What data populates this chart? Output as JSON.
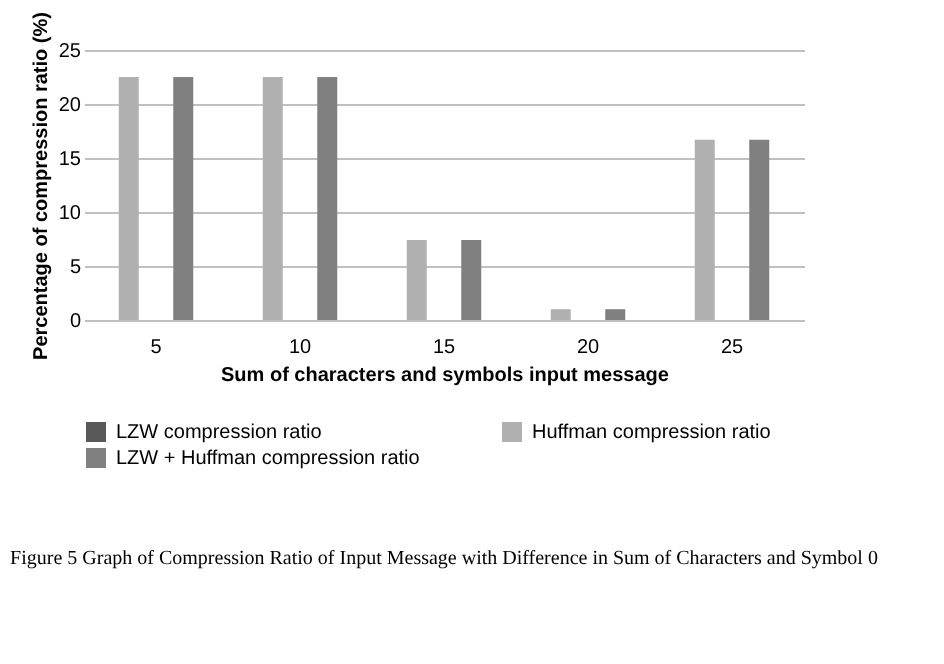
{
  "chart_data": {
    "type": "bar",
    "xlabel": "Sum of characters and symbols input message",
    "ylabel": "Percentage of compression ratio (%)",
    "categories": [
      "5",
      "10",
      "15",
      "20",
      "25"
    ],
    "series": [
      {
        "name": "LZW compression ratio",
        "color": "#595959",
        "values": [
          null,
          null,
          null,
          null,
          null
        ]
      },
      {
        "name": "Huffman compression ratio",
        "color": "#b0b0b0",
        "values": [
          22.5,
          22.5,
          7.4,
          1.0,
          16.7
        ]
      },
      {
        "name": "LZW + Huffman compression ratio",
        "color": "#808080",
        "values": [
          22.5,
          22.5,
          7.4,
          1.0,
          16.7
        ]
      }
    ],
    "ylim": [
      0,
      25
    ],
    "yticks": [
      0,
      5,
      10,
      15,
      20,
      25
    ],
    "grid": "y",
    "legend": "bottom",
    "annotations": [
      "Figure 5 Graph of Compression Ratio of Input Message with Difference in Sum of Characters and Symbol 0"
    ]
  }
}
